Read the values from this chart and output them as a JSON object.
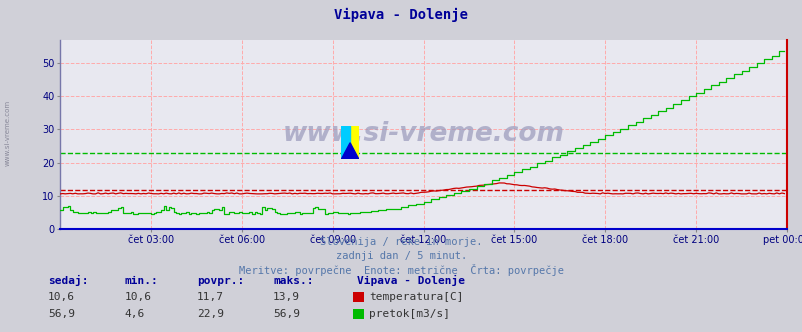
{
  "title": "Vipava - Dolenje",
  "title_color": "#000099",
  "bg_color": "#d0d0d8",
  "plot_bg_color": "#e8e8f0",
  "grid_color": "#ffaaaa",
  "xticklabels": [
    "čet 03:00",
    "čet 06:00",
    "čet 09:00",
    "čet 12:00",
    "čet 15:00",
    "čet 18:00",
    "čet 21:00",
    "pet 00:00"
  ],
  "ytick_vals": [
    0,
    10,
    20,
    30,
    40,
    50
  ],
  "ylim_max": 57,
  "n_points": 288,
  "temp_avg": 11.7,
  "flow_avg": 22.9,
  "temp_color": "#cc0000",
  "flow_color": "#00bb00",
  "watermark": "www.si-vreme.com",
  "watermark_color": "#9999bb",
  "subtitle1": "Slovenija / reke in morje.",
  "subtitle2": "zadnji dan / 5 minut.",
  "subtitle3": "Meritve: povrpečne  Enote: metrične  Črta: povrpečje",
  "subtitle_color": "#5577aa",
  "axis_label_color": "#000080",
  "left_label": "www.si-vreme.com",
  "left_label_color": "#888899",
  "header_sedaj": "sedaj:",
  "header_min": "min.:",
  "header_povpr": "povpr.:",
  "header_maks": "maks.:",
  "header_station": "Vipava - Dolenje",
  "temp_sedaj": "10,6",
  "temp_min": "10,6",
  "temp_povpr": "11,7",
  "temp_maks": "13,9",
  "temp_legend": "temperatura[C]",
  "flow_sedaj": "56,9",
  "flow_min": "4,6",
  "flow_povpr": "22,9",
  "flow_maks": "56,9",
  "flow_legend": "pretok[m3/s]"
}
